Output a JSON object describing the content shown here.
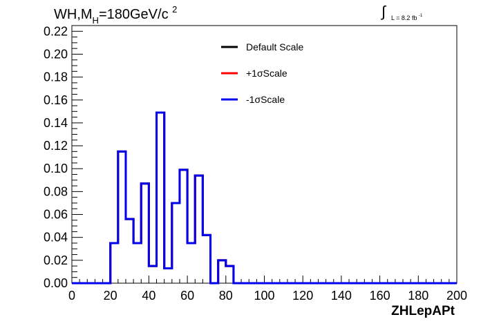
{
  "title": {
    "prefix": "WH,M",
    "subscript": "H",
    "value": "=180GeV/c",
    "superscript": "2"
  },
  "luminosity": {
    "integral": "∫",
    "text": "L = 8.2 fb",
    "superscript": "-1"
  },
  "chart_data": {
    "type": "line",
    "style": "step-histogram",
    "xlabel": "ZHLepAPt",
    "ylabel": "",
    "xlim": [
      0,
      200
    ],
    "ylim": [
      0,
      0.225
    ],
    "x_ticks": [
      0,
      20,
      40,
      60,
      80,
      100,
      120,
      140,
      160,
      180,
      200
    ],
    "x_tick_labels": [
      "0",
      "20",
      "40",
      "60",
      "80",
      "100",
      "120",
      "140",
      "160",
      "180",
      "200"
    ],
    "y_ticks": [
      0,
      0.02,
      0.04,
      0.06,
      0.08,
      0.1,
      0.12,
      0.14,
      0.16,
      0.18,
      0.2,
      0.22
    ],
    "y_tick_labels": [
      "0.00",
      "0.02",
      "0.04",
      "0.06",
      "0.08",
      "0.10",
      "0.12",
      "0.14",
      "0.16",
      "0.18",
      "0.20",
      "0.22"
    ],
    "bin_width": 4,
    "bin_edges": [
      0,
      4,
      8,
      12,
      16,
      20,
      24,
      28,
      32,
      36,
      40,
      44,
      48,
      52,
      56,
      60,
      64,
      68,
      72,
      76,
      80,
      84,
      88,
      92,
      96,
      100,
      104,
      108,
      112,
      116,
      120,
      124,
      128,
      132,
      136,
      140,
      144,
      148,
      152,
      156,
      160,
      164,
      168,
      172,
      176,
      180,
      184,
      188,
      192,
      196,
      200
    ],
    "legend_position": "top-center",
    "series": [
      {
        "name": "Default Scale",
        "color": "#000000",
        "values": [
          0,
          0,
          0,
          0,
          0,
          0.035,
          0.115,
          0.056,
          0.035,
          0.087,
          0.015,
          0.149,
          0.013,
          0.07,
          0.099,
          0.035,
          0.094,
          0.042,
          0,
          0.02,
          0.015,
          0,
          0,
          0,
          0,
          0,
          0,
          0,
          0,
          0,
          0,
          0,
          0,
          0,
          0,
          0,
          0,
          0,
          0,
          0,
          0,
          0,
          0,
          0,
          0,
          0,
          0,
          0,
          0,
          0
        ]
      },
      {
        "name": "+1σScale",
        "color": "#ff0000",
        "values": [
          0,
          0,
          0,
          0,
          0,
          0.035,
          0.115,
          0.056,
          0.035,
          0.087,
          0.015,
          0.149,
          0.013,
          0.07,
          0.099,
          0.035,
          0.094,
          0.042,
          0,
          0.02,
          0.015,
          0,
          0,
          0,
          0,
          0,
          0,
          0,
          0,
          0,
          0,
          0,
          0,
          0,
          0,
          0,
          0,
          0,
          0,
          0,
          0,
          0,
          0,
          0,
          0,
          0,
          0,
          0,
          0,
          0
        ]
      },
      {
        "name": "-1σScale",
        "color": "#0000ee",
        "values": [
          0,
          0,
          0,
          0,
          0,
          0.035,
          0.115,
          0.056,
          0.035,
          0.087,
          0.015,
          0.149,
          0.013,
          0.07,
          0.099,
          0.035,
          0.094,
          0.042,
          0,
          0.02,
          0.015,
          0,
          0,
          0,
          0,
          0,
          0,
          0,
          0,
          0,
          0,
          0,
          0,
          0,
          0,
          0,
          0,
          0,
          0,
          0,
          0,
          0,
          0,
          0,
          0,
          0,
          0,
          0,
          0,
          0
        ]
      }
    ]
  }
}
